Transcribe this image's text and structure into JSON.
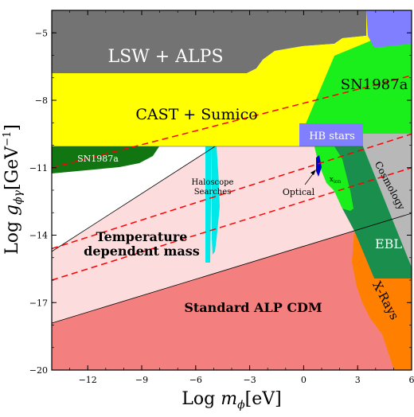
{
  "chart_data": {
    "type": "area",
    "title": "",
    "xlabel": "Log m_ϕ[eV]",
    "ylabel": "Log g_ϕγ[GeV⁻¹]",
    "xlim": [
      -14,
      6
    ],
    "ylim": [
      -20,
      -4
    ],
    "xscale": "log10 (values given as exponent)",
    "x_ticks": [
      -12,
      -9,
      -6,
      -3,
      0,
      3,
      6
    ],
    "y_ticks": [
      -5,
      -8,
      -11,
      -14,
      -17,
      -20
    ],
    "x_tick_labels": [
      "−12",
      "−9",
      "−6",
      "−3",
      "0",
      "3",
      "6"
    ],
    "y_tick_labels": [
      "−5",
      "−8",
      "−11",
      "−14",
      "−17",
      "−20"
    ],
    "grid": false,
    "regions": [
      {
        "name": "Standard ALP CDM",
        "color": "#f47f7f"
      },
      {
        "name": "Temperature dependent mass",
        "color": "#fcdcdc"
      },
      {
        "name": "LSW + ALPS",
        "color": "#737373"
      },
      {
        "name": "CAST + Sumico",
        "color": "#ffff00"
      },
      {
        "name": "SN1987a",
        "color": "#1bef1b"
      },
      {
        "name": "SN1987a",
        "color": "#117511"
      },
      {
        "name": "HB stars",
        "color": "#7f7fff"
      },
      {
        "name": "Haloscope Searches",
        "color": "#00e8e8"
      },
      {
        "name": "Optical",
        "color": "#0000cc"
      },
      {
        "name": "x_ion",
        "color": "#1bef1b"
      },
      {
        "name": "Cosmology",
        "color": "#b8b8b8"
      },
      {
        "name": "EBL",
        "color": "#1a8f4d"
      },
      {
        "name": "X-Rays",
        "color": "#ff8000"
      }
    ],
    "lines": [
      {
        "style": "dashed",
        "color": "#ff0000",
        "x": [
          -14,
          6
        ],
        "y": [
          -11,
          -6.9
        ]
      },
      {
        "style": "dashed",
        "color": "#ff0000",
        "x": [
          -14,
          6
        ],
        "y": [
          -14.6,
          -9.5
        ]
      },
      {
        "style": "dashed",
        "color": "#ff0000",
        "x": [
          -14,
          6
        ],
        "y": [
          -16,
          -11
        ]
      }
    ]
  },
  "labels": {
    "lsw_alps": "LSW + ALPS",
    "cast_sumico": "CAST + Sumico",
    "sn1987a_right": "SN1987a",
    "sn1987a_left": "SN1987a",
    "hb_stars": "HB stars",
    "haloscope_1": "Haloscope",
    "haloscope_2": "Searches",
    "optical": "Optical",
    "x_ion_main": "x",
    "x_ion_sub": "ion",
    "cosmology": "Cosmology",
    "ebl": "EBL",
    "xrays": "X-Rays",
    "temp_dep_1": "Temperature",
    "temp_dep_2": "dependent mass",
    "std_alp": "Standard ALP CDM"
  },
  "axes": {
    "x_title_main": "Log ",
    "x_title_var": "m",
    "x_title_sub": "ϕ",
    "x_title_unit": "[eV]",
    "y_title_main": "Log ",
    "y_title_var": "g",
    "y_title_sub": "ϕγ",
    "y_title_unit": "[GeV",
    "y_title_exp": "−1",
    "y_title_close": "]"
  }
}
